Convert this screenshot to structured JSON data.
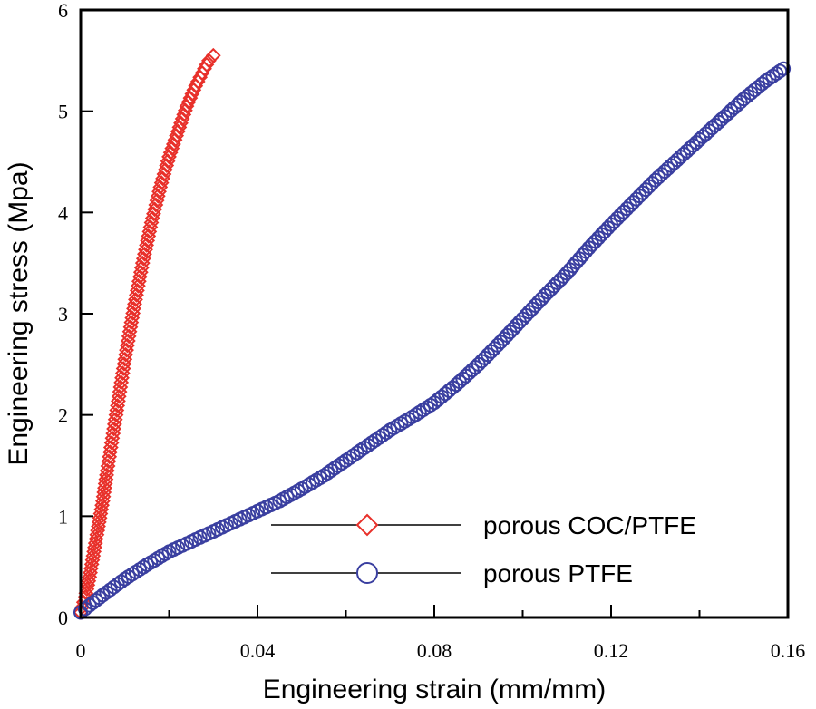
{
  "chart_data": {
    "type": "scatter",
    "title": "",
    "xlabel": "Engineering strain (mm/mm)",
    "ylabel": "Engineering stress (Mpa)",
    "xlim": [
      0,
      0.16
    ],
    "ylim": [
      0,
      6
    ],
    "xticks": [
      0,
      0.04,
      0.08,
      0.12,
      0.16
    ],
    "xtick_labels": [
      "0",
      "0.04",
      "0.08",
      "0.12",
      "0.16"
    ],
    "yticks": [
      0,
      1,
      2,
      3,
      4,
      5,
      6
    ],
    "ytick_labels": [
      "0",
      "1",
      "2",
      "3",
      "4",
      "5",
      "6"
    ],
    "grid": false,
    "legend_position": "bottom-right",
    "series": [
      {
        "name": "porous COC/PTFE",
        "marker": "diamond",
        "color": "#e8302a",
        "x": [
          0,
          0.001,
          0.002,
          0.003,
          0.004,
          0.005,
          0.006,
          0.008,
          0.01,
          0.012,
          0.014,
          0.016,
          0.018,
          0.02,
          0.022,
          0.024,
          0.026,
          0.028,
          0.029,
          0.03
        ],
        "y": [
          0.05,
          0.2,
          0.4,
          0.65,
          0.9,
          1.15,
          1.45,
          2.0,
          2.55,
          3.05,
          3.5,
          3.9,
          4.25,
          4.55,
          4.8,
          5.05,
          5.25,
          5.42,
          5.5,
          5.55
        ]
      },
      {
        "name": "porous PTFE",
        "marker": "circle",
        "color": "#3a3fa0",
        "x": [
          0,
          0.002,
          0.005,
          0.01,
          0.015,
          0.02,
          0.025,
          0.03,
          0.035,
          0.04,
          0.045,
          0.05,
          0.055,
          0.06,
          0.065,
          0.07,
          0.075,
          0.08,
          0.085,
          0.09,
          0.095,
          0.1,
          0.105,
          0.11,
          0.115,
          0.12,
          0.125,
          0.13,
          0.135,
          0.14,
          0.145,
          0.15,
          0.155,
          0.159
        ],
        "y": [
          0.05,
          0.12,
          0.22,
          0.38,
          0.52,
          0.65,
          0.75,
          0.85,
          0.95,
          1.05,
          1.15,
          1.27,
          1.4,
          1.55,
          1.7,
          1.85,
          1.98,
          2.12,
          2.3,
          2.5,
          2.72,
          2.95,
          3.18,
          3.4,
          3.65,
          3.88,
          4.1,
          4.32,
          4.52,
          4.72,
          4.92,
          5.12,
          5.3,
          5.42
        ]
      }
    ]
  }
}
